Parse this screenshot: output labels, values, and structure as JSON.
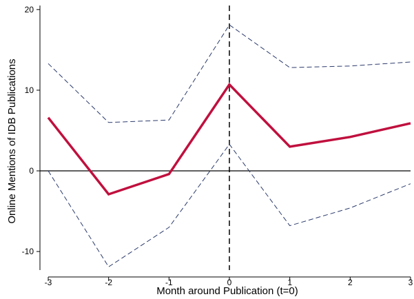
{
  "chart_data": {
    "type": "line",
    "title": "",
    "xlabel": "Month around Publication (t=0)",
    "ylabel": "Online Mentions of IDB Publications",
    "x": [
      -3,
      -2,
      -1,
      0,
      1,
      2,
      3
    ],
    "xticks": [
      "-3",
      "-2",
      "-1",
      "0",
      "1",
      "2",
      "3"
    ],
    "yticks": [
      "-10",
      "0",
      "10",
      "20"
    ],
    "xlim": [
      -3,
      3
    ],
    "ylim": [
      -12.3,
      20.5
    ],
    "grid": false,
    "legend": "none",
    "reference_lines": {
      "y": 0,
      "x": 0
    },
    "series": [
      {
        "role": "estimate",
        "color": "#c0103e",
        "style": "solid",
        "values": [
          6.6,
          -2.9,
          -0.4,
          10.7,
          3.0,
          4.2,
          5.9
        ]
      },
      {
        "role": "upper-ci",
        "color": "#2b3a6b",
        "style": "dashed",
        "values": [
          13.3,
          6.0,
          6.3,
          18.1,
          12.8,
          13.0,
          13.5
        ]
      },
      {
        "role": "lower-ci",
        "color": "#2b3a6b",
        "style": "dashed",
        "values": [
          0.0,
          -11.9,
          -7.0,
          3.3,
          -6.8,
          -4.6,
          -1.6
        ]
      }
    ]
  }
}
